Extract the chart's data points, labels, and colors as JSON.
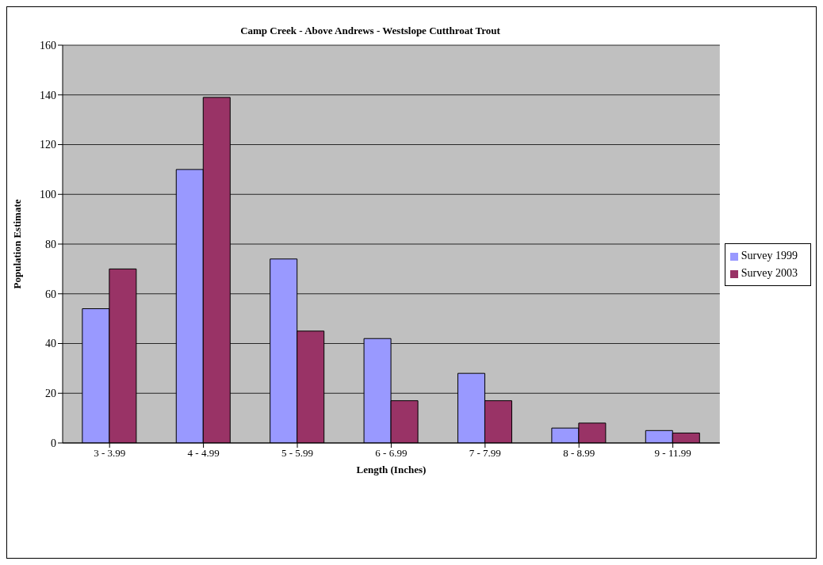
{
  "chart_data": {
    "type": "bar",
    "title": "Camp Creek - Above Andrews - Westslope Cutthroat  Trout",
    "xlabel": "Length (Inches)",
    "ylabel": "Population Estimate",
    "categories": [
      "3 - 3.99",
      "4 - 4.99",
      "5 - 5.99",
      "6 - 6.99",
      "7 - 7.99",
      "8 - 8.99",
      "9 - 11.99"
    ],
    "series": [
      {
        "name": "Survey 1999",
        "color": "#9999ff",
        "values": [
          54,
          110,
          74,
          42,
          28,
          6,
          5
        ]
      },
      {
        "name": "Survey 2003",
        "color": "#993366",
        "values": [
          70,
          139,
          45,
          17,
          17,
          8,
          4
        ]
      }
    ],
    "ylim": [
      0,
      160
    ],
    "yticks": [
      0,
      20,
      40,
      60,
      80,
      100,
      120,
      140,
      160
    ],
    "grid": "y",
    "legend": "right"
  }
}
